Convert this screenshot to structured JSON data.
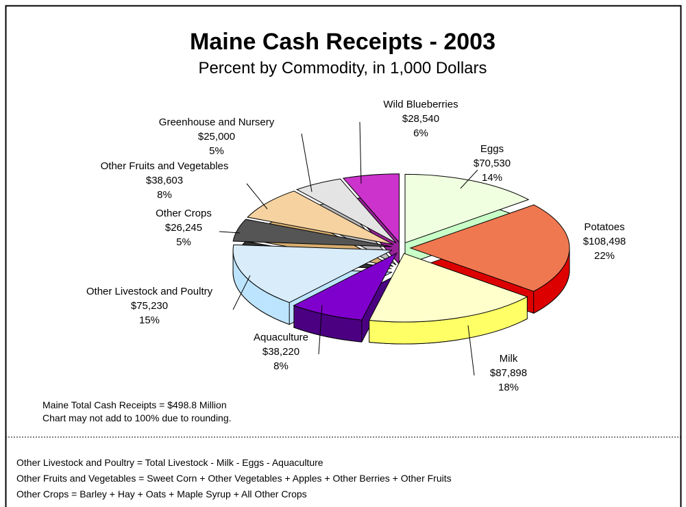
{
  "chart_data": {
    "type": "pie3d",
    "title": "Maine Cash Receipts - 2003",
    "subtitle": "Percent by Commodity, in 1,000 Dollars",
    "categories": [
      "Wild Blueberries",
      "Eggs",
      "Potatoes",
      "Milk",
      "Aquaculture",
      "Other Livestock and Poultry",
      "Other Crops",
      "Other Fruits and Vegetables",
      "Greenhouse and Nursery"
    ],
    "values": [
      28540,
      70530,
      108498,
      87898,
      38220,
      75230,
      26245,
      38603,
      25000
    ],
    "value_labels": [
      "$28,540",
      "$70,530",
      "$108,498",
      "$87,898",
      "$38,220",
      "$75,230",
      "$26,245",
      "$38,603",
      "$25,000"
    ],
    "percents": [
      6,
      14,
      22,
      18,
      8,
      15,
      5,
      8,
      5
    ],
    "percent_labels": [
      "6%",
      "14%",
      "22%",
      "18%",
      "8%",
      "15%",
      "5%",
      "8%",
      "5%"
    ],
    "colors": [
      "#cc33cc",
      "#f0ffe0",
      "#f07850",
      "#ffffcc",
      "#7f00cc",
      "#d8ecfa",
      "#555555",
      "#f5d2a0",
      "#e4e4e4"
    ],
    "side_colors": [
      "#992299",
      "#c8ffc8",
      "#dd0000",
      "#ffff66",
      "#4b0082",
      "#bde4ff",
      "#333333",
      "#d8ae70",
      "#bbbbbb"
    ],
    "notes": [
      "Maine Total Cash Receipts = $498.8 Million",
      "Chart may not add to 100% due to rounding."
    ],
    "footnotes": [
      "Other Livestock and Poultry = Total Livestock - Milk - Eggs - Aquaculture",
      "Other Fruits and Vegetables = Sweet Corn + Other Vegetables + Apples + Other Berries + Other Fruits",
      "Other Crops = Barley + Hay  + Oats + Maple Syrup + All Other Crops"
    ]
  }
}
